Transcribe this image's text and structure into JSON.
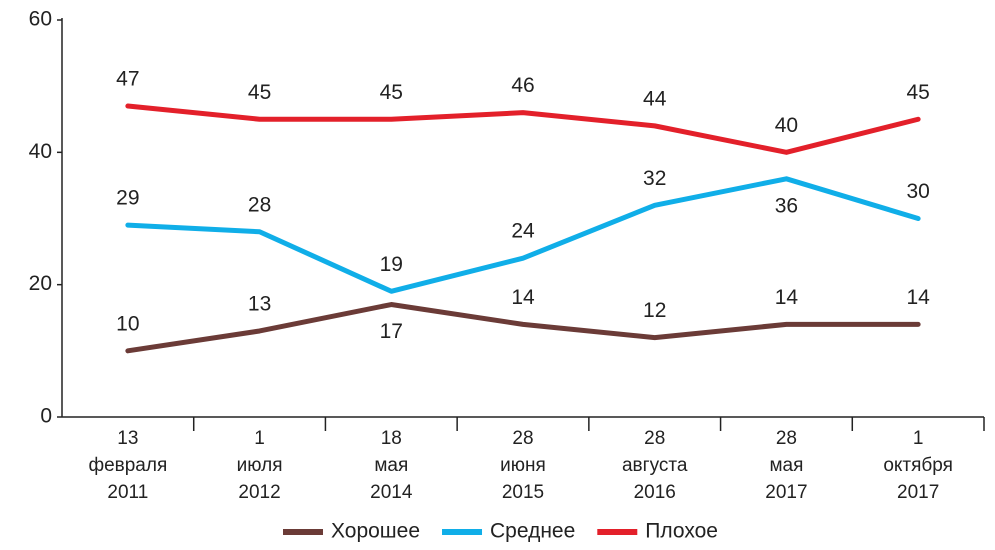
{
  "chart_data": {
    "type": "line",
    "categories": [
      [
        "13",
        "февраля",
        "2011"
      ],
      [
        "1",
        "июля",
        "2012"
      ],
      [
        "18",
        "мая",
        "2014"
      ],
      [
        "28",
        "июня",
        "2015"
      ],
      [
        "28",
        "августа",
        "2016"
      ],
      [
        "28",
        "мая",
        "2017"
      ],
      [
        "1",
        "октября",
        "2017"
      ]
    ],
    "series": [
      {
        "name": "Хорошее",
        "color": "#6b3b37",
        "values": [
          10,
          13,
          17,
          14,
          12,
          14,
          14
        ]
      },
      {
        "name": "Среднее",
        "color": "#10aee8",
        "values": [
          29,
          28,
          19,
          24,
          32,
          36,
          30
        ]
      },
      {
        "name": "Плохое",
        "color": "#e3202a",
        "values": [
          47,
          45,
          45,
          46,
          44,
          40,
          45
        ]
      }
    ],
    "ylim": [
      0,
      60
    ],
    "yticks": [
      0,
      20,
      40,
      60
    ],
    "grid": false,
    "legend": "bottom"
  }
}
